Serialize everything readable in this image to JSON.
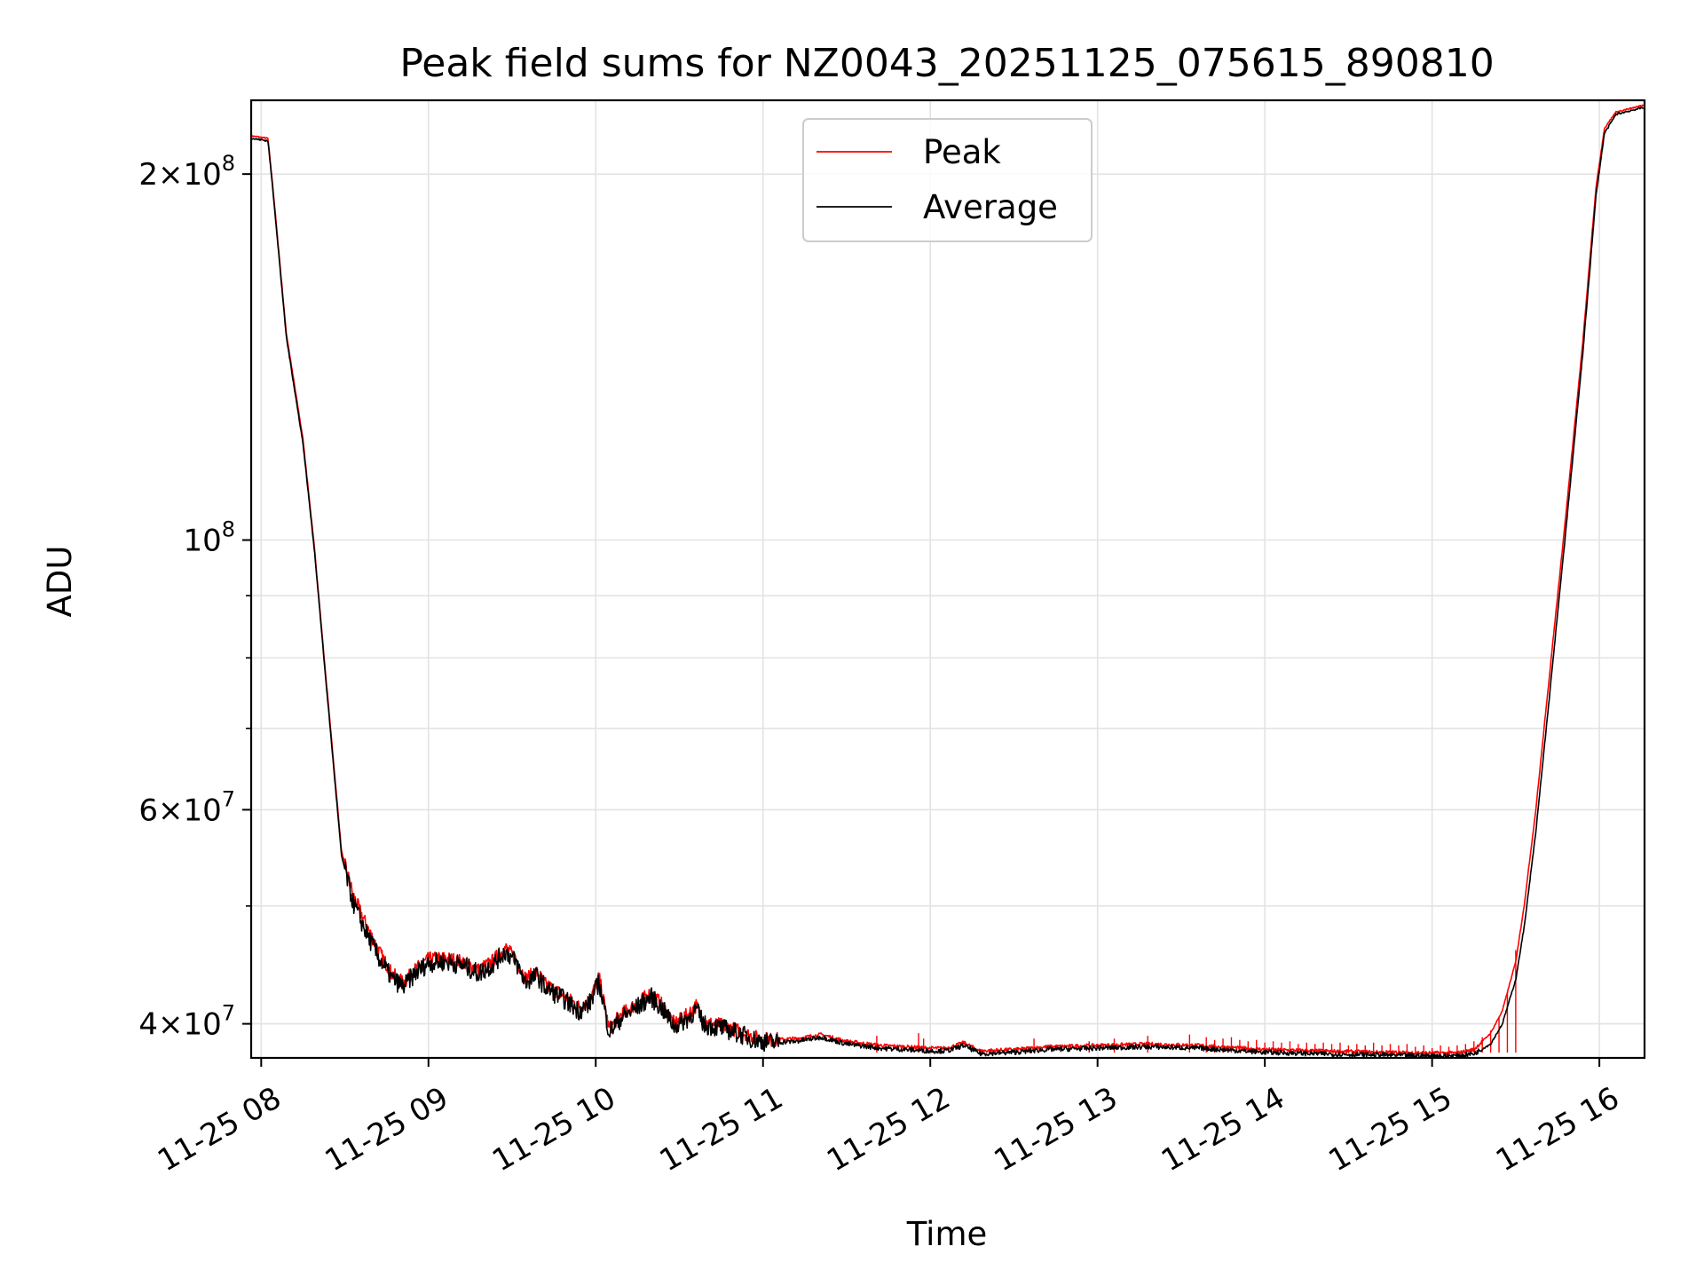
{
  "chart_data": {
    "type": "line",
    "title": "Peak field sums for NZ0043_20251125_075615_890810",
    "xlabel": "Time",
    "ylabel": "ADU",
    "yscale": "log",
    "grid": true,
    "legend_position": "top-center",
    "xlim_hours": [
      7.94,
      16.27
    ],
    "ylim": [
      37500000,
      230000000
    ],
    "x_ticks": [
      {
        "hour": 8,
        "label": "11-25 08"
      },
      {
        "hour": 9,
        "label": "11-25 09"
      },
      {
        "hour": 10,
        "label": "11-25 10"
      },
      {
        "hour": 11,
        "label": "11-25 11"
      },
      {
        "hour": 12,
        "label": "11-25 12"
      },
      {
        "hour": 13,
        "label": "11-25 13"
      },
      {
        "hour": 14,
        "label": "11-25 14"
      },
      {
        "hour": 15,
        "label": "11-25 15"
      },
      {
        "hour": 16,
        "label": "11-25 16"
      }
    ],
    "y_ticks": [
      {
        "value": 40000000,
        "mant": "4",
        "exp": "7"
      },
      {
        "value": 60000000,
        "mant": "6",
        "exp": "7"
      },
      {
        "value": 100000000,
        "mant": "",
        "exp": "8"
      },
      {
        "value": 200000000,
        "mant": "2",
        "exp": "8"
      }
    ],
    "y_minor_ticks": [
      50000000,
      70000000,
      80000000,
      90000000
    ],
    "series": [
      {
        "name": "Peak",
        "color": "#ff0000",
        "points": [
          [
            7.94,
            215000000
          ],
          [
            8.04,
            214000000
          ],
          [
            8.07,
            195000000
          ],
          [
            8.15,
            148000000
          ],
          [
            8.25,
            121000000
          ],
          [
            8.32,
            98000000
          ],
          [
            8.38,
            79000000
          ],
          [
            8.44,
            64000000
          ],
          [
            8.48,
            55500000
          ],
          [
            8.55,
            51000000
          ],
          [
            8.62,
            48500000
          ],
          [
            8.7,
            46000000
          ],
          [
            8.78,
            44000000
          ],
          [
            8.85,
            43200000
          ],
          [
            8.92,
            44300000
          ],
          [
            9.0,
            45200000
          ],
          [
            9.1,
            45300000
          ],
          [
            9.2,
            45000000
          ],
          [
            9.3,
            44300000
          ],
          [
            9.38,
            45000000
          ],
          [
            9.46,
            46200000
          ],
          [
            9.52,
            45300000
          ],
          [
            9.58,
            43600000
          ],
          [
            9.65,
            44100000
          ],
          [
            9.7,
            43100000
          ],
          [
            9.8,
            42300000
          ],
          [
            9.9,
            41300000
          ],
          [
            9.96,
            41800000
          ],
          [
            10.02,
            43700000
          ],
          [
            10.08,
            39600000
          ],
          [
            10.15,
            40700000
          ],
          [
            10.25,
            41600000
          ],
          [
            10.33,
            42400000
          ],
          [
            10.4,
            41400000
          ],
          [
            10.47,
            40000000
          ],
          [
            10.55,
            40700000
          ],
          [
            10.6,
            41400000
          ],
          [
            10.65,
            40100000
          ],
          [
            10.75,
            39900000
          ],
          [
            10.85,
            39500000
          ],
          [
            10.95,
            39000000
          ],
          [
            11.05,
            38800000
          ],
          [
            11.2,
            38900000
          ],
          [
            11.35,
            39200000
          ],
          [
            11.5,
            38700000
          ],
          [
            11.7,
            38400000
          ],
          [
            12.0,
            38200000
          ],
          [
            12.1,
            38200000
          ],
          [
            12.2,
            38600000
          ],
          [
            12.3,
            38000000
          ],
          [
            12.5,
            38100000
          ],
          [
            12.7,
            38300000
          ],
          [
            13.0,
            38400000
          ],
          [
            13.3,
            38500000
          ],
          [
            13.6,
            38400000
          ],
          [
            14.0,
            38100000
          ],
          [
            14.5,
            37950000
          ],
          [
            15.0,
            37850000
          ],
          [
            15.15,
            37850000
          ],
          [
            15.25,
            38100000
          ],
          [
            15.35,
            39300000
          ],
          [
            15.42,
            41000000
          ],
          [
            15.5,
            45000000
          ],
          [
            15.55,
            50000000
          ],
          [
            15.62,
            60000000
          ],
          [
            15.7,
            77000000
          ],
          [
            15.8,
            105000000
          ],
          [
            15.9,
            145000000
          ],
          [
            15.98,
            195000000
          ],
          [
            16.03,
            218000000
          ],
          [
            16.1,
            225000000
          ],
          [
            16.27,
            228000000
          ]
        ],
        "spikes": [
          [
            11.68,
            39100000
          ],
          [
            11.93,
            39300000
          ],
          [
            11.96,
            38900000
          ],
          [
            12.62,
            38900000
          ],
          [
            12.95,
            38700000
          ],
          [
            13.1,
            38900000
          ],
          [
            13.3,
            39100000
          ],
          [
            13.55,
            39200000
          ],
          [
            13.65,
            39000000
          ],
          [
            13.7,
            38800000
          ],
          [
            13.75,
            38900000
          ],
          [
            13.8,
            39000000
          ],
          [
            13.85,
            38800000
          ],
          [
            13.9,
            38700000
          ],
          [
            13.95,
            38800000
          ],
          [
            14.0,
            38600000
          ],
          [
            14.05,
            38700000
          ],
          [
            14.1,
            38600000
          ],
          [
            14.15,
            38700000
          ],
          [
            14.2,
            38500000
          ],
          [
            14.25,
            38600000
          ],
          [
            14.3,
            38500000
          ],
          [
            14.35,
            38600000
          ],
          [
            14.4,
            38500000
          ],
          [
            14.45,
            38600000
          ],
          [
            14.5,
            38400000
          ],
          [
            14.55,
            38500000
          ],
          [
            14.6,
            38400000
          ],
          [
            14.65,
            38600000
          ],
          [
            14.7,
            38400000
          ],
          [
            14.75,
            38500000
          ],
          [
            14.8,
            38400000
          ],
          [
            14.85,
            38500000
          ],
          [
            14.9,
            38300000
          ],
          [
            14.95,
            38400000
          ],
          [
            15.0,
            38200000
          ],
          [
            15.05,
            38400000
          ],
          [
            15.1,
            38300000
          ],
          [
            15.15,
            38400000
          ],
          [
            15.2,
            38500000
          ],
          [
            15.25,
            38700000
          ],
          [
            15.3,
            39000000
          ],
          [
            15.35,
            39500000
          ],
          [
            15.4,
            40500000
          ],
          [
            15.45,
            42500000
          ],
          [
            15.5,
            46000000
          ]
        ]
      },
      {
        "name": "Average",
        "color": "#000000",
        "points": [
          [
            7.94,
            214000000
          ],
          [
            8.04,
            213000000
          ],
          [
            8.07,
            194000000
          ],
          [
            8.15,
            147000000
          ],
          [
            8.25,
            120000000
          ],
          [
            8.32,
            97500000
          ],
          [
            8.38,
            78500000
          ],
          [
            8.44,
            63500000
          ],
          [
            8.48,
            55000000
          ],
          [
            8.55,
            50300000
          ],
          [
            8.62,
            47800000
          ],
          [
            8.7,
            45400000
          ],
          [
            8.78,
            43600000
          ],
          [
            8.85,
            42900000
          ],
          [
            8.92,
            44000000
          ],
          [
            9.0,
            44900000
          ],
          [
            9.1,
            45000000
          ],
          [
            9.2,
            44700000
          ],
          [
            9.3,
            44000000
          ],
          [
            9.38,
            44700000
          ],
          [
            9.46,
            45900000
          ],
          [
            9.52,
            45000000
          ],
          [
            9.58,
            43300000
          ],
          [
            9.65,
            43800000
          ],
          [
            9.7,
            42800000
          ],
          [
            9.8,
            42000000
          ],
          [
            9.9,
            41000000
          ],
          [
            9.96,
            41500000
          ],
          [
            10.02,
            43300000
          ],
          [
            10.08,
            39400000
          ],
          [
            10.15,
            40400000
          ],
          [
            10.25,
            41300000
          ],
          [
            10.33,
            42100000
          ],
          [
            10.4,
            41100000
          ],
          [
            10.47,
            39800000
          ],
          [
            10.55,
            40400000
          ],
          [
            10.6,
            41100000
          ],
          [
            10.65,
            39900000
          ],
          [
            10.75,
            39700000
          ],
          [
            10.85,
            39300000
          ],
          [
            10.95,
            38800000
          ],
          [
            11.05,
            38600000
          ],
          [
            11.2,
            38700000
          ],
          [
            11.35,
            39000000
          ],
          [
            11.5,
            38500000
          ],
          [
            11.7,
            38200000
          ],
          [
            12.0,
            38000000
          ],
          [
            12.1,
            38000000
          ],
          [
            12.2,
            38400000
          ],
          [
            12.3,
            37800000
          ],
          [
            12.5,
            37900000
          ],
          [
            12.7,
            38100000
          ],
          [
            13.0,
            38200000
          ],
          [
            13.3,
            38300000
          ],
          [
            13.6,
            38200000
          ],
          [
            14.0,
            37900000
          ],
          [
            14.5,
            37750000
          ],
          [
            15.0,
            37650000
          ],
          [
            15.15,
            37650000
          ],
          [
            15.25,
            37800000
          ],
          [
            15.35,
            38500000
          ],
          [
            15.42,
            40000000
          ],
          [
            15.5,
            43500000
          ],
          [
            15.55,
            48000000
          ],
          [
            15.62,
            57500000
          ],
          [
            15.7,
            74000000
          ],
          [
            15.8,
            102000000
          ],
          [
            15.9,
            142000000
          ],
          [
            15.98,
            192000000
          ],
          [
            16.03,
            216000000
          ],
          [
            16.1,
            224000000
          ],
          [
            16.27,
            227000000
          ]
        ]
      }
    ]
  }
}
